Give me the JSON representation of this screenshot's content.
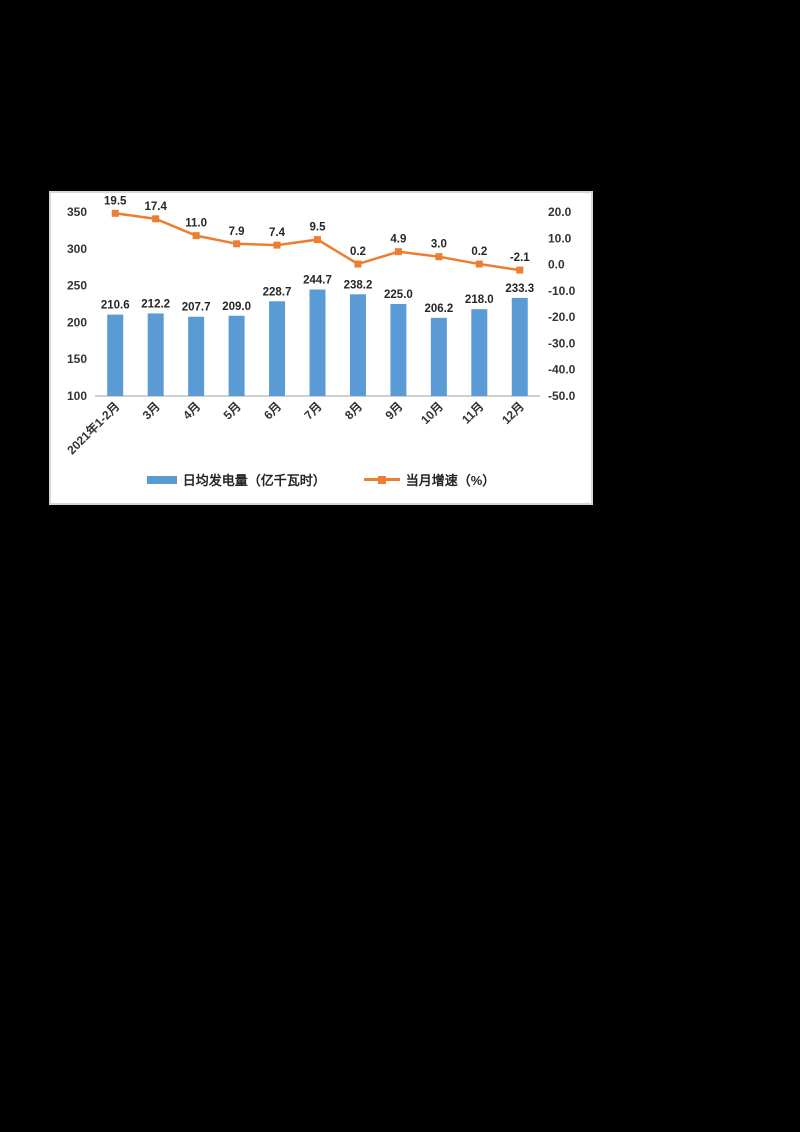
{
  "page": {
    "background": "#000000"
  },
  "panel": {
    "background": "#FFFFFF",
    "border_color": "#D6D6D6"
  },
  "chart_data": {
    "type": "bar",
    "subtype": "bar+line combo, dual axis",
    "title": "",
    "categories": [
      "2021年1-2月",
      "3月",
      "4月",
      "5月",
      "6月",
      "7月",
      "8月",
      "9月",
      "10月",
      "11月",
      "12月"
    ],
    "series": [
      {
        "name": "日均发电量（亿千瓦时）",
        "type": "bar",
        "axis": "left",
        "color": "#5B9BD5",
        "values": [
          210.6,
          212.2,
          207.7,
          209.0,
          228.7,
          244.7,
          238.2,
          225.0,
          206.2,
          218.0,
          233.3
        ],
        "labels": [
          "210.6",
          "212.2",
          "207.7",
          "209.0",
          "228.7",
          "244.7",
          "238.2",
          "225.0",
          "206.2",
          "218.0",
          "233.3"
        ]
      },
      {
        "name": "当月增速（%）",
        "type": "line",
        "axis": "right",
        "color": "#ED7D31",
        "values": [
          19.5,
          17.4,
          11.0,
          7.9,
          7.4,
          9.5,
          0.2,
          4.9,
          3.0,
          0.2,
          -2.1
        ],
        "labels": [
          "19.5",
          "17.4",
          "11.0",
          "7.9",
          "7.4",
          "9.5",
          "0.2",
          "4.9",
          "3.0",
          "0.2",
          "-2.1"
        ]
      }
    ],
    "left_axis": {
      "min": 100,
      "max": 350,
      "step": 50,
      "ticks": [
        "350",
        "300",
        "250",
        "200",
        "150",
        "100"
      ]
    },
    "right_axis": {
      "min": -50,
      "max": 20,
      "step": 10,
      "ticks": [
        "20.0",
        "10.0",
        "0.0",
        "-10.0",
        "-20.0",
        "-30.0",
        "-40.0",
        "-50.0"
      ]
    },
    "grid": false,
    "legend_position": "bottom",
    "text_color": "#333333",
    "axis_line_color": "#BFBFBF"
  }
}
